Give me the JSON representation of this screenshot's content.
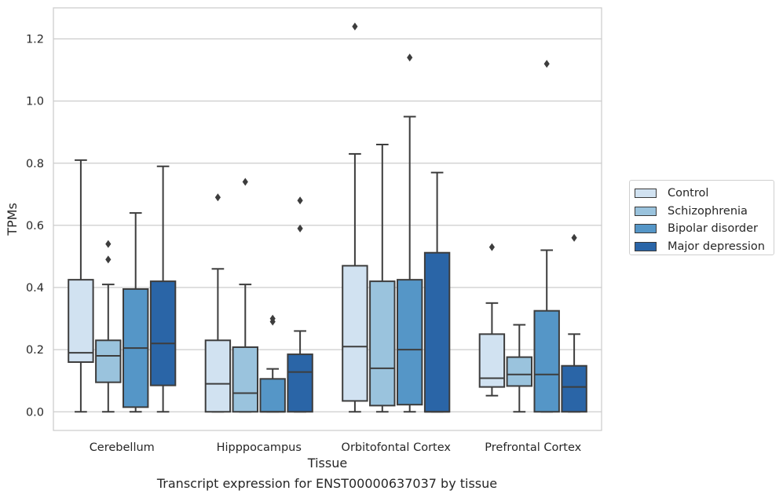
{
  "chart_data": {
    "type": "box",
    "title": "",
    "xlabel": "Tissue",
    "ylabel": "TPMs",
    "ylim": [
      -0.06,
      1.3
    ],
    "yticks": [
      0.0,
      0.2,
      0.4,
      0.6,
      0.8,
      1.0,
      1.2
    ],
    "ytick_labels": [
      "0.0",
      "0.2",
      "0.4",
      "0.6",
      "0.8",
      "1.0",
      "1.2"
    ],
    "grid": "horizontal",
    "legend_position": "right",
    "categories": [
      "Cerebellum",
      "Hipppocampus",
      "Orbitofontal Cortex",
      "Prefrontal Cortex"
    ],
    "series": [
      {
        "name": "Control",
        "color": "#d1e2f1",
        "boxes": [
          {
            "q1": 0.16,
            "median": 0.19,
            "q3": 0.425,
            "whisker_low": 0.0,
            "whisker_high": 0.81,
            "outliers": []
          },
          {
            "q1": 0.0,
            "median": 0.09,
            "q3": 0.23,
            "whisker_low": 0.0,
            "whisker_high": 0.46,
            "outliers": [
              0.69
            ]
          },
          {
            "q1": 0.035,
            "median": 0.21,
            "q3": 0.47,
            "whisker_low": 0.0,
            "whisker_high": 0.83,
            "outliers": [
              1.24
            ]
          },
          {
            "q1": 0.08,
            "median": 0.108,
            "q3": 0.25,
            "whisker_low": 0.052,
            "whisker_high": 0.35,
            "outliers": [
              0.53
            ]
          }
        ]
      },
      {
        "name": "Schizophrenia",
        "color": "#9ac3dd",
        "boxes": [
          {
            "q1": 0.095,
            "median": 0.18,
            "q3": 0.23,
            "whisker_low": 0.0,
            "whisker_high": 0.41,
            "outliers": [
              0.49,
              0.54
            ]
          },
          {
            "q1": 0.0,
            "median": 0.06,
            "q3": 0.208,
            "whisker_low": 0.0,
            "whisker_high": 0.41,
            "outliers": [
              0.74
            ]
          },
          {
            "q1": 0.02,
            "median": 0.14,
            "q3": 0.42,
            "whisker_low": 0.0,
            "whisker_high": 0.86,
            "outliers": []
          },
          {
            "q1": 0.083,
            "median": 0.12,
            "q3": 0.176,
            "whisker_low": 0.0,
            "whisker_high": 0.28,
            "outliers": []
          }
        ]
      },
      {
        "name": "Bipolar disorder",
        "color": "#5596c7",
        "boxes": [
          {
            "q1": 0.015,
            "median": 0.205,
            "q3": 0.395,
            "whisker_low": 0.0,
            "whisker_high": 0.64,
            "outliers": []
          },
          {
            "q1": 0.0,
            "median": 0.0,
            "q3": 0.106,
            "whisker_low": 0.0,
            "whisker_high": 0.138,
            "outliers": [
              0.29,
              0.3
            ]
          },
          {
            "q1": 0.023,
            "median": 0.2,
            "q3": 0.425,
            "whisker_low": 0.0,
            "whisker_high": 0.95,
            "outliers": [
              1.14
            ]
          },
          {
            "q1": 0.0,
            "median": 0.12,
            "q3": 0.325,
            "whisker_low": 0.0,
            "whisker_high": 0.52,
            "outliers": [
              1.12
            ]
          }
        ]
      },
      {
        "name": "Major depression",
        "color": "#2a65a7",
        "boxes": [
          {
            "q1": 0.085,
            "median": 0.22,
            "q3": 0.42,
            "whisker_low": 0.0,
            "whisker_high": 0.79,
            "outliers": []
          },
          {
            "q1": 0.0,
            "median": 0.128,
            "q3": 0.185,
            "whisker_low": 0.0,
            "whisker_high": 0.26,
            "outliers": [
              0.59,
              0.68
            ]
          },
          {
            "q1": 0.0,
            "median": 0.0,
            "q3": 0.512,
            "whisker_low": 0.0,
            "whisker_high": 0.77,
            "outliers": []
          },
          {
            "q1": 0.0,
            "median": 0.08,
            "q3": 0.148,
            "whisker_low": 0.0,
            "whisker_high": 0.25,
            "outliers": [
              0.56
            ]
          }
        ]
      }
    ]
  },
  "caption": "Transcript expression for ENST00000637037 by tissue"
}
